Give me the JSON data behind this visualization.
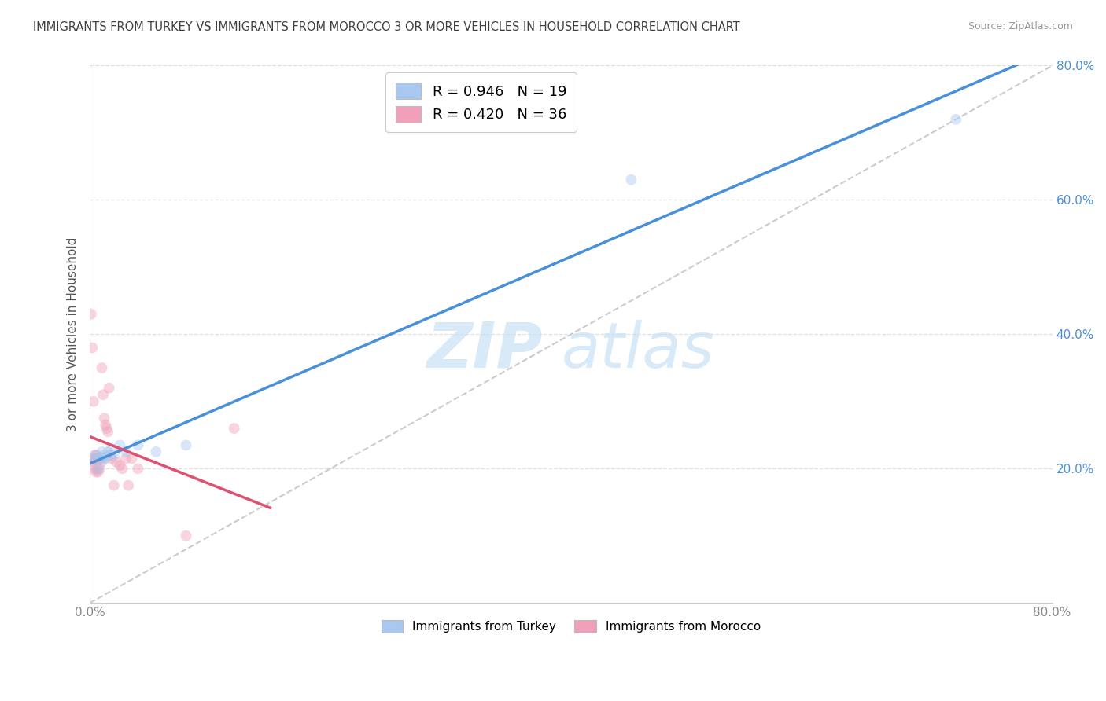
{
  "title": "IMMIGRANTS FROM TURKEY VS IMMIGRANTS FROM MOROCCO 3 OR MORE VEHICLES IN HOUSEHOLD CORRELATION CHART",
  "source": "Source: ZipAtlas.com",
  "ylabel": "3 or more Vehicles in Household",
  "xlim": [
    0.0,
    0.8
  ],
  "ylim": [
    0.0,
    0.8
  ],
  "xtick_labels": [
    "0.0%",
    "",
    "",
    "",
    "80.0%"
  ],
  "xtick_vals": [
    0.0,
    0.2,
    0.4,
    0.6,
    0.8
  ],
  "ytick_labels": [
    "20.0%",
    "40.0%",
    "60.0%",
    "80.0%"
  ],
  "ytick_vals": [
    0.2,
    0.4,
    0.6,
    0.8
  ],
  "legend_entries": [
    {
      "label": "R = 0.946   N = 19",
      "color": "#a8c8f0"
    },
    {
      "label": "R = 0.420   N = 36",
      "color": "#f0a0b8"
    }
  ],
  "legend_bottom": [
    {
      "label": "Immigrants from Turkey",
      "color": "#a8c8f0"
    },
    {
      "label": "Immigrants from Morocco",
      "color": "#f0a0b8"
    }
  ],
  "watermark_zip": "ZIP",
  "watermark_atlas": "atlas",
  "diagonal_color": "#cccccc",
  "turkey_scatter": [
    [
      0.002,
      0.215
    ],
    [
      0.005,
      0.22
    ],
    [
      0.007,
      0.2
    ],
    [
      0.008,
      0.215
    ],
    [
      0.01,
      0.225
    ],
    [
      0.011,
      0.215
    ],
    [
      0.012,
      0.22
    ],
    [
      0.013,
      0.215
    ],
    [
      0.015,
      0.225
    ],
    [
      0.016,
      0.22
    ],
    [
      0.018,
      0.23
    ],
    [
      0.02,
      0.22
    ],
    [
      0.025,
      0.235
    ],
    [
      0.03,
      0.225
    ],
    [
      0.04,
      0.235
    ],
    [
      0.055,
      0.225
    ],
    [
      0.08,
      0.235
    ],
    [
      0.45,
      0.63
    ],
    [
      0.72,
      0.72
    ]
  ],
  "morocco_scatter": [
    [
      0.001,
      0.43
    ],
    [
      0.002,
      0.38
    ],
    [
      0.002,
      0.215
    ],
    [
      0.003,
      0.3
    ],
    [
      0.003,
      0.21
    ],
    [
      0.004,
      0.22
    ],
    [
      0.004,
      0.2
    ],
    [
      0.005,
      0.215
    ],
    [
      0.005,
      0.195
    ],
    [
      0.006,
      0.22
    ],
    [
      0.006,
      0.2
    ],
    [
      0.007,
      0.215
    ],
    [
      0.007,
      0.195
    ],
    [
      0.008,
      0.215
    ],
    [
      0.008,
      0.2
    ],
    [
      0.009,
      0.215
    ],
    [
      0.01,
      0.35
    ],
    [
      0.01,
      0.21
    ],
    [
      0.011,
      0.31
    ],
    [
      0.012,
      0.275
    ],
    [
      0.013,
      0.265
    ],
    [
      0.014,
      0.26
    ],
    [
      0.015,
      0.255
    ],
    [
      0.016,
      0.32
    ],
    [
      0.017,
      0.22
    ],
    [
      0.018,
      0.215
    ],
    [
      0.02,
      0.175
    ],
    [
      0.022,
      0.21
    ],
    [
      0.025,
      0.205
    ],
    [
      0.027,
      0.2
    ],
    [
      0.03,
      0.215
    ],
    [
      0.032,
      0.175
    ],
    [
      0.035,
      0.215
    ],
    [
      0.04,
      0.2
    ],
    [
      0.08,
      0.1
    ],
    [
      0.12,
      0.26
    ]
  ],
  "turkey_line_color": "#4a90d9",
  "morocco_line_color": "#e05070",
  "background_color": "#ffffff",
  "grid_color": "#e0e0e0",
  "title_color": "#404040",
  "scatter_alpha": 0.45,
  "scatter_size": 100
}
